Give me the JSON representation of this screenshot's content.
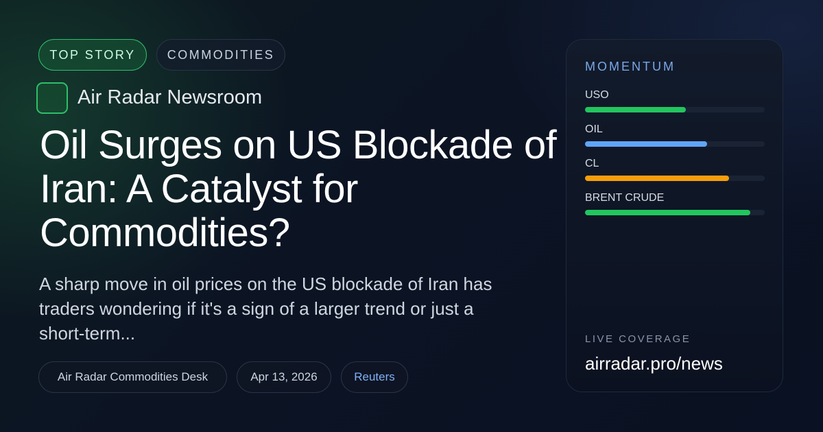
{
  "header": {
    "tags": [
      "TOP STORY",
      "COMMODITIES"
    ],
    "brand": "Air Radar Newsroom"
  },
  "article": {
    "title": "Oil Surges on US Blockade of Iran: A Catalyst for Commodities?",
    "summary": "A sharp move in oil prices on the US blockade of Iran has traders wondering if it's a sign of a larger trend or just a short-term...",
    "meta": [
      "Air Radar Commodities Desk",
      "Apr 13, 2026",
      "Reuters"
    ]
  },
  "momentum": {
    "title": "MOMENTUM",
    "xlim": [
      0,
      100
    ],
    "items": [
      {
        "name": "USO",
        "value": 56,
        "color": "#22c55e"
      },
      {
        "name": "OIL",
        "value": 68,
        "color": "#60a5fa"
      },
      {
        "name": "CL",
        "value": 80,
        "color": "#f59e0b"
      },
      {
        "name": "BRENT CRUDE",
        "value": 92,
        "color": "#22c55e"
      }
    ]
  },
  "footer": {
    "label": "LIVE COVERAGE",
    "url": "airradar.pro/news"
  }
}
